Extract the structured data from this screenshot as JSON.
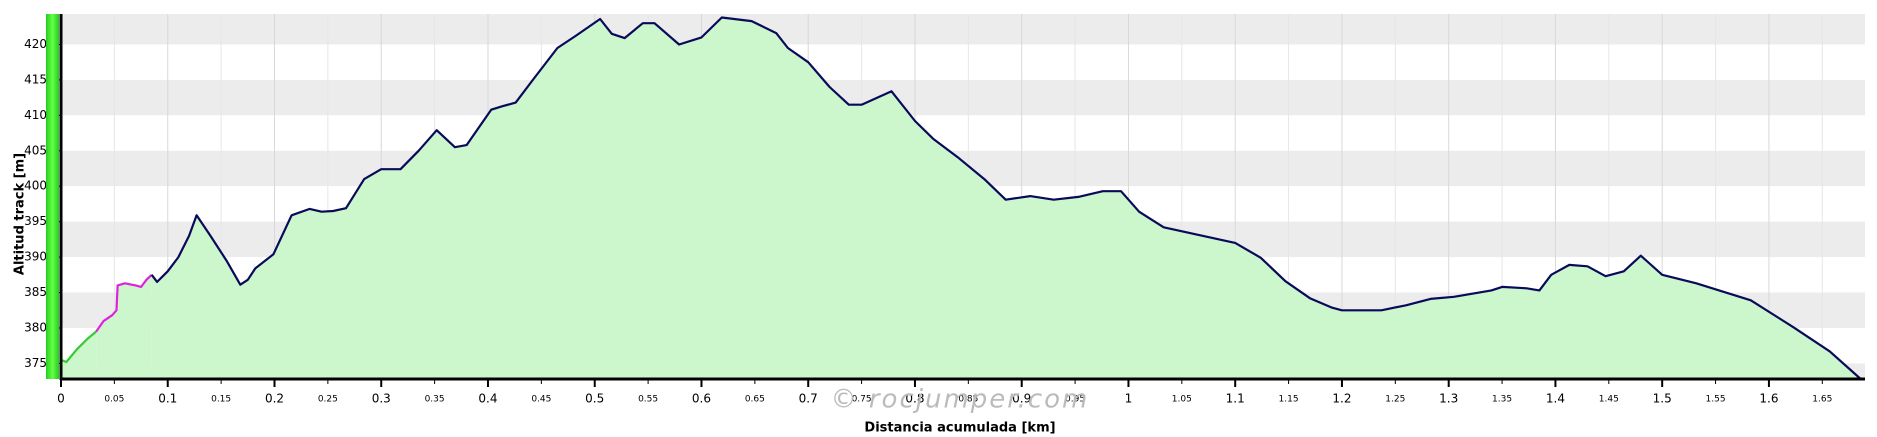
{
  "chart_data": {
    "type": "line",
    "xlabel": "Distancia acumulada [km]",
    "ylabel": "Altitud track [m]",
    "annotation": "© rocjumper.com",
    "xlim": [
      0,
      1.69
    ],
    "ylim": [
      372.8,
      424.3
    ],
    "xticks": [
      0,
      0.05,
      0.1,
      0.15,
      0.2,
      0.25,
      0.3,
      0.35,
      0.4,
      0.45,
      0.5,
      0.55,
      0.6,
      0.65,
      0.7,
      0.75,
      0.8,
      0.85,
      0.9,
      0.95,
      1,
      1.05,
      1.1,
      1.15,
      1.2,
      1.25,
      1.3,
      1.35,
      1.4,
      1.45,
      1.5,
      1.55,
      1.6,
      1.65
    ],
    "yticks": [
      375,
      380,
      385,
      390,
      395,
      400,
      405,
      410,
      415,
      420
    ],
    "grid": true,
    "fill": "#ccf7cc",
    "series": [
      {
        "color": "#33cc33",
        "x": [
          0,
          0.005,
          0.015,
          0.025,
          0.033
        ],
        "values": [
          375.5,
          375.2,
          377,
          378.5,
          379.5
        ]
      },
      {
        "color": "#dd22dd",
        "x": [
          0.033,
          0.04,
          0.048,
          0.052,
          0.053,
          0.06,
          0.07,
          0.075,
          0.08,
          0.085
        ],
        "values": [
          379.5,
          381,
          381.8,
          382.5,
          386,
          386.3,
          386,
          385.8,
          386.8,
          387.5
        ]
      },
      {
        "color": "#0a0a5a",
        "x": [
          0.085,
          0.09,
          0.1,
          0.11,
          0.12,
          0.127,
          0.14,
          0.155,
          0.168,
          0.175,
          0.182,
          0.199,
          0.216,
          0.233,
          0.244,
          0.255,
          0.267,
          0.284,
          0.3,
          0.318,
          0.335,
          0.352,
          0.369,
          0.38,
          0.403,
          0.414,
          0.426,
          0.443,
          0.465,
          0.482,
          0.505,
          0.516,
          0.528,
          0.545,
          0.556,
          0.579,
          0.6,
          0.619,
          0.647,
          0.67,
          0.681,
          0.7,
          0.72,
          0.738,
          0.75,
          0.778,
          0.8,
          0.817,
          0.84,
          0.865,
          0.885,
          0.908,
          0.93,
          0.953,
          0.976,
          0.993,
          1.01,
          1.033,
          1.1,
          1.124,
          1.147,
          1.17,
          1.19,
          1.2,
          1.237,
          1.26,
          1.283,
          1.305,
          1.34,
          1.35,
          1.373,
          1.385,
          1.396,
          1.413,
          1.43,
          1.447,
          1.464,
          1.48,
          1.5,
          1.532,
          1.583,
          1.623,
          1.657,
          1.686
        ],
        "values": [
          387.5,
          386.5,
          388,
          390,
          393,
          395.9,
          393,
          389.5,
          386.1,
          386.8,
          388.4,
          390.4,
          395.9,
          396.8,
          396.4,
          396.5,
          396.9,
          401,
          402.4,
          402.4,
          405,
          407.9,
          405.5,
          405.8,
          410.8,
          411.3,
          411.8,
          415.2,
          419.5,
          421.2,
          423.6,
          421.5,
          420.9,
          423,
          423,
          420,
          421,
          423.8,
          423.3,
          421.6,
          419.5,
          417.5,
          414,
          411.5,
          411.5,
          413.4,
          409.2,
          406.7,
          404.1,
          401,
          398.1,
          398.6,
          398.1,
          398.5,
          399.3,
          399.3,
          396.4,
          394.2,
          392,
          389.9,
          386.6,
          384.2,
          382.9,
          382.5,
          382.5,
          383.2,
          384.1,
          384.4,
          385.3,
          385.8,
          385.6,
          385.3,
          387.5,
          388.9,
          388.7,
          387.3,
          388,
          390.2,
          387.5,
          386.3,
          383.9,
          380.1,
          376.7,
          372.8
        ]
      }
    ]
  }
}
